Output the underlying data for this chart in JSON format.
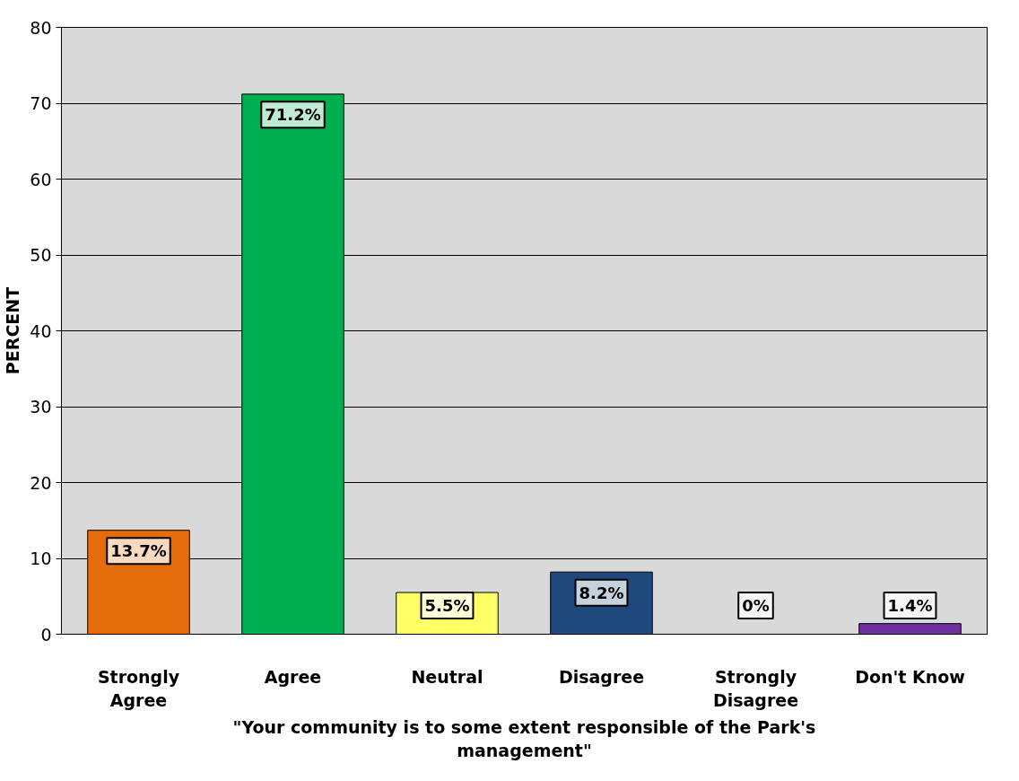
{
  "chart_data": {
    "type": "bar",
    "xlabel": "\"Your community is to some extent responsible of the Park's management\"",
    "ylabel": "PERCENT",
    "categories": [
      "Strongly Agree",
      "Agree",
      "Neutral",
      "Disagree",
      "Strongly Disagree",
      "Don't Know"
    ],
    "values": [
      13.7,
      71.2,
      5.5,
      8.2,
      0,
      1.4
    ],
    "colors": [
      "#e46c0a",
      "#00b050",
      "#ffff66",
      "#1f497d",
      null,
      "#7030a0"
    ],
    "value_labels": [
      "13.7%",
      "71.2%",
      "5.5%",
      "8.2%",
      "0%",
      "1.4%"
    ],
    "ylim": [
      0,
      80
    ],
    "yticks": [
      0,
      10,
      20,
      30,
      40,
      50,
      60,
      70,
      80
    ],
    "grid": "y"
  }
}
